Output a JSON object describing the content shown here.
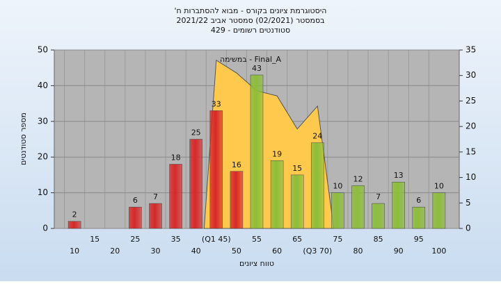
{
  "chart_data": {
    "type": "bar",
    "title": [
      "היסטוגרמת ציונים בקורס - מבוא להסתברות ח'",
      "בסמסטר (02/2021) סמסטר אביב 2021/22",
      "סטודנטים רשומים - 429"
    ],
    "ylabel": "מספר סטודנטים",
    "xlabel": "טווח ציונים",
    "categories": [
      "10",
      "15",
      "20",
      "25",
      "30",
      "35",
      "40",
      "(Q1 45)",
      "50",
      "55",
      "60",
      "65",
      "(Q3 70)",
      "75",
      "80",
      "85",
      "90",
      "95",
      "100"
    ],
    "values": [
      2,
      null,
      null,
      6,
      7,
      18,
      25,
      33,
      16,
      43,
      19,
      15,
      24,
      10,
      12,
      7,
      13,
      6,
      10
    ],
    "colors": [
      "#d62828",
      "#d62828",
      "#d62828",
      "#d62828",
      "#d62828",
      "#d62828",
      "#d62828",
      "#d62828",
      "#d62828",
      "#8cbd3a",
      "#8cbd3a",
      "#8cbd3a",
      "#8cbd3a",
      "#8cbd3a",
      "#8cbd3a",
      "#8cbd3a",
      "#8cbd3a",
      "#8cbd3a",
      "#8cbd3a"
    ],
    "ylim": [
      0,
      50
    ],
    "yticks": [
      0,
      10,
      20,
      30,
      40,
      50
    ],
    "y2lim": [
      0,
      35
    ],
    "y2ticks": [
      0,
      5,
      10,
      15,
      20,
      25,
      30,
      35
    ],
    "xlim": [
      5,
      105
    ],
    "grid": true,
    "area": {
      "type": "area",
      "name": "במשימה - Final_A",
      "color": "#ffc94d",
      "axis": "y2",
      "x": [
        42,
        45,
        50,
        55,
        60,
        65,
        70,
        74
      ],
      "values": [
        0,
        33,
        30.5,
        27,
        26,
        19.5,
        24,
        0
      ]
    }
  }
}
